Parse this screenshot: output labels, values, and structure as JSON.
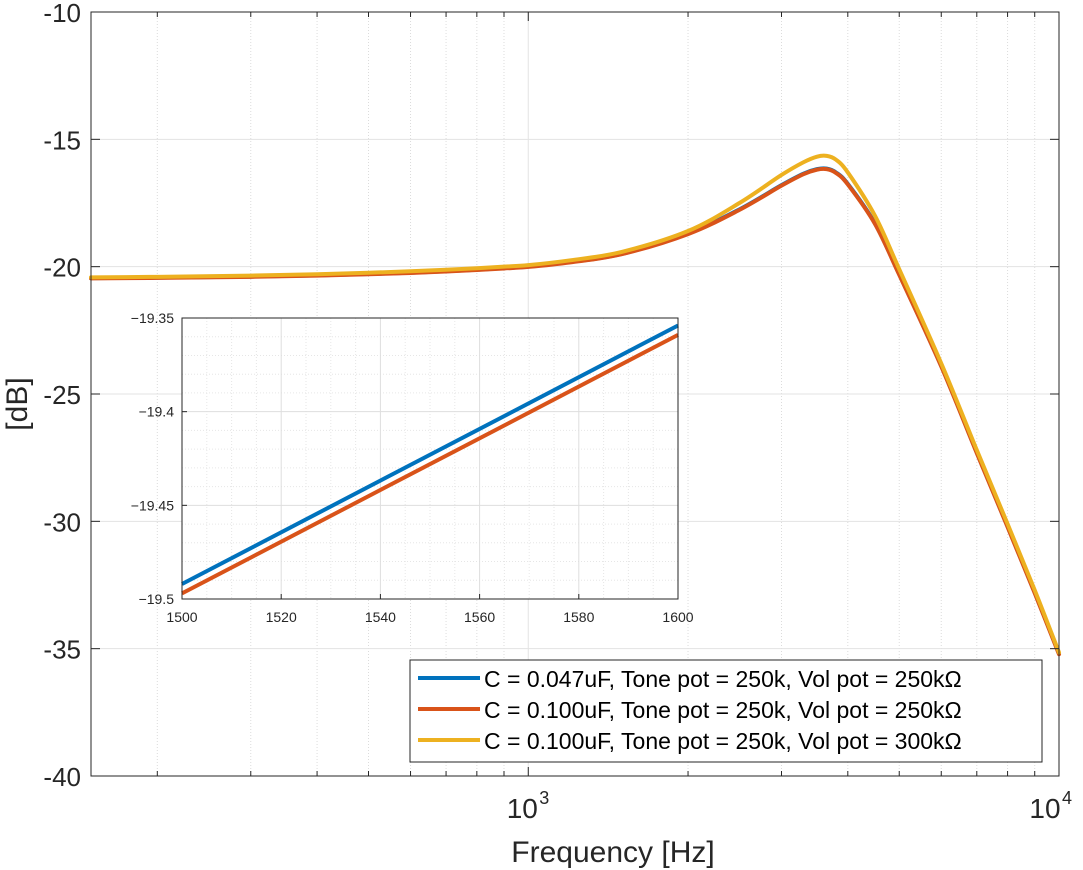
{
  "chart_data": [
    {
      "type": "line",
      "title": "",
      "xlabel": "Frequency [Hz]",
      "ylabel": "[dB]",
      "xscale": "log",
      "xlim": [
        150,
        10000
      ],
      "ylim": [
        -40,
        -10
      ],
      "yticks": [
        -40,
        -35,
        -30,
        -25,
        -20,
        -15,
        -10
      ],
      "ytick_labels": [
        "-40",
        "-35",
        "-30",
        "-25",
        "-20",
        "-15",
        "-10"
      ],
      "xticks": [
        {
          "value": 1000,
          "base": "10",
          "exp": "3"
        },
        {
          "value": 10000,
          "base": "10",
          "exp": "4"
        }
      ],
      "grid": true,
      "legend_position": "bottom-right",
      "series": [
        {
          "name": "C = 0.047uF, Tone pot = 250k, Vol pot = 250kΩ",
          "color": "#0072BD",
          "points": [
            [
              150,
              -20.45
            ],
            [
              200,
              -20.43
            ],
            [
              300,
              -20.39
            ],
            [
              400,
              -20.34
            ],
            [
              500,
              -20.29
            ],
            [
              600,
              -20.24
            ],
            [
              700,
              -20.18
            ],
            [
              800,
              -20.12
            ],
            [
              900,
              -20.06
            ],
            [
              1000,
              -20.0
            ],
            [
              1200,
              -19.82
            ],
            [
              1500,
              -19.5
            ],
            [
              2000,
              -18.7
            ],
            [
              2500,
              -17.75
            ],
            [
              3000,
              -16.8
            ],
            [
              3300,
              -16.35
            ],
            [
              3500,
              -16.17
            ],
            [
              3650,
              -16.15
            ],
            [
              3800,
              -16.3
            ],
            [
              4000,
              -16.75
            ],
            [
              4500,
              -18.3
            ],
            [
              5000,
              -20.3
            ],
            [
              6000,
              -23.9
            ],
            [
              7000,
              -27.3
            ],
            [
              8000,
              -30.2
            ],
            [
              9000,
              -32.8
            ],
            [
              10000,
              -35.2
            ]
          ]
        },
        {
          "name": "C = 0.100uF, Tone pot = 250k, Vol pot = 250kΩ",
          "color": "#D95319",
          "points": [
            [
              150,
              -20.46
            ],
            [
              200,
              -20.44
            ],
            [
              300,
              -20.4
            ],
            [
              400,
              -20.35
            ],
            [
              500,
              -20.3
            ],
            [
              600,
              -20.25
            ],
            [
              700,
              -20.19
            ],
            [
              800,
              -20.13
            ],
            [
              900,
              -20.07
            ],
            [
              1000,
              -20.01
            ],
            [
              1200,
              -19.83
            ],
            [
              1500,
              -19.51
            ],
            [
              2000,
              -18.72
            ],
            [
              2500,
              -17.77
            ],
            [
              3000,
              -16.82
            ],
            [
              3300,
              -16.37
            ],
            [
              3500,
              -16.19
            ],
            [
              3650,
              -16.17
            ],
            [
              3800,
              -16.32
            ],
            [
              4000,
              -16.77
            ],
            [
              4500,
              -18.32
            ],
            [
              5000,
              -20.32
            ],
            [
              6000,
              -23.92
            ],
            [
              7000,
              -27.32
            ],
            [
              8000,
              -30.22
            ],
            [
              9000,
              -32.82
            ],
            [
              10000,
              -35.22
            ]
          ]
        },
        {
          "name": "C = 0.100uF, Tone pot = 250k, Vol pot = 300kΩ",
          "color": "#EDB120",
          "points": [
            [
              150,
              -20.42
            ],
            [
              200,
              -20.4
            ],
            [
              300,
              -20.35
            ],
            [
              400,
              -20.3
            ],
            [
              500,
              -20.24
            ],
            [
              600,
              -20.18
            ],
            [
              700,
              -20.12
            ],
            [
              800,
              -20.06
            ],
            [
              900,
              -20.0
            ],
            [
              1000,
              -19.94
            ],
            [
              1200,
              -19.75
            ],
            [
              1500,
              -19.42
            ],
            [
              2000,
              -18.6
            ],
            [
              2500,
              -17.5
            ],
            [
              3000,
              -16.4
            ],
            [
              3300,
              -15.9
            ],
            [
              3500,
              -15.68
            ],
            [
              3650,
              -15.65
            ],
            [
              3800,
              -15.8
            ],
            [
              4000,
              -16.3
            ],
            [
              4500,
              -18.0
            ],
            [
              5000,
              -20.1
            ],
            [
              6000,
              -23.8
            ],
            [
              7000,
              -27.2
            ],
            [
              8000,
              -30.1
            ],
            [
              9000,
              -32.7
            ],
            [
              10000,
              -35.15
            ]
          ]
        }
      ]
    },
    {
      "type": "line",
      "title": "",
      "xlabel": "",
      "ylabel": "",
      "xscale": "linear",
      "xlim": [
        1500,
        1600
      ],
      "ylim": [
        -19.5,
        -19.35
      ],
      "xticks": [
        1500,
        1520,
        1540,
        1560,
        1580,
        1600
      ],
      "xtick_labels": [
        "1500",
        "1520",
        "1540",
        "1560",
        "1580",
        "1600"
      ],
      "yticks": [
        -19.5,
        -19.45,
        -19.4,
        -19.35
      ],
      "ytick_labels": [
        "−19.5",
        "−19.45",
        "−19.4",
        "−19.35"
      ],
      "grid": true,
      "series": [
        {
          "color": "#0072BD",
          "points": [
            [
              1500,
              -19.492
            ],
            [
              1600,
              -19.354
            ]
          ]
        },
        {
          "color": "#D95319",
          "points": [
            [
              1500,
              -19.497
            ],
            [
              1600,
              -19.359
            ]
          ]
        }
      ]
    }
  ]
}
